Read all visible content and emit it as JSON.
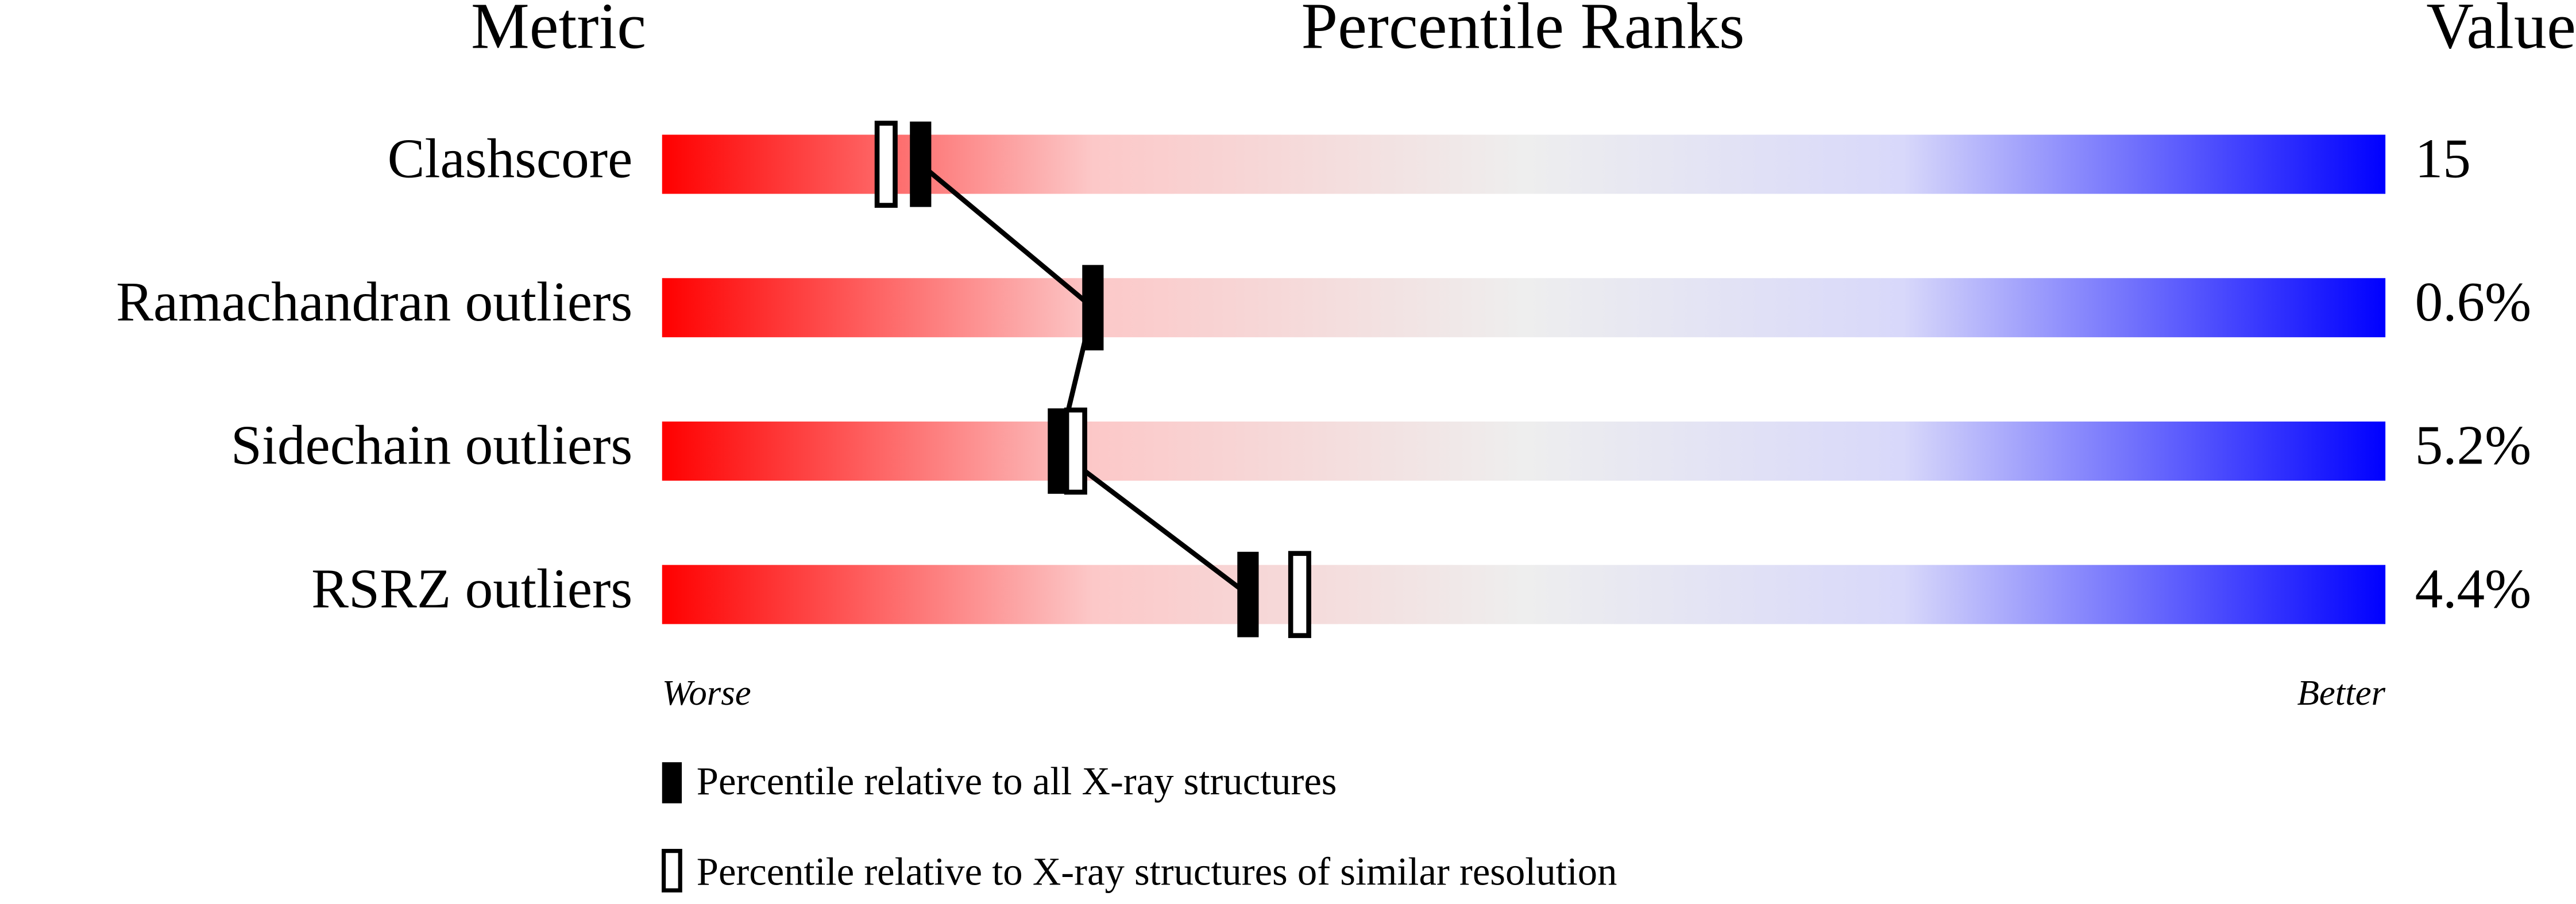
{
  "chart_data": {
    "type": "percentile-slider",
    "title": "Percentile Ranks",
    "metric_header": "Metric",
    "value_header": "Value",
    "categories": [
      "Clashscore",
      "Ramachandran outliers",
      "Sidechain outliers",
      "RSRZ outliers"
    ],
    "metric_values": {
      "values": [
        15,
        0.6,
        5.2,
        4.4
      ],
      "value_labels": [
        "15",
        "0.6%",
        "5.2%",
        "4.4%"
      ]
    },
    "xlim": [
      0,
      100
    ],
    "x_end_labels": {
      "low": "Worse",
      "high": "Better"
    },
    "series": [
      {
        "name": "Percentile relative to all X-ray structures",
        "style": "filled",
        "color": "#000000",
        "values": [
          15,
          25,
          23,
          34
        ]
      },
      {
        "name": "Percentile relative to X-ray structures of similar resolution",
        "style": "open",
        "color": "#000000",
        "values": [
          13,
          null,
          24,
          37
        ]
      }
    ]
  }
}
